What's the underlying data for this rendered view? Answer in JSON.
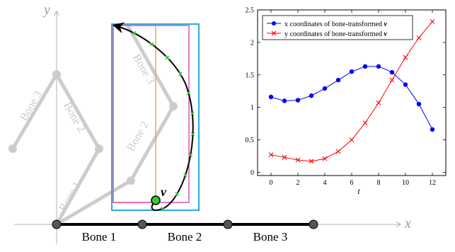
{
  "diagram": {
    "axis_y_label": "y",
    "axis_x_label": "x",
    "rest_bones": [
      "Bone 1",
      "Bone 2",
      "Bone 3"
    ],
    "posed_bones_left": [
      "Bone 1",
      "Bone 2",
      "Bone 3"
    ],
    "posed_bones_right": [
      "Bone 2",
      "Bone 3"
    ],
    "point_label": "v",
    "colors": {
      "ghost": "#cccccc",
      "axis": "#b3b3b3",
      "path": "#000000",
      "path_markers": "#33cc33",
      "point": "#33cc33",
      "box_cyan": "#29abe2",
      "box_orange": "#f2a24c",
      "box_magenta": "#e64fb4",
      "rest_bone": "#000000",
      "joint": "#555555"
    }
  },
  "chart_data": {
    "type": "line",
    "x": [
      0,
      1,
      2,
      3,
      4,
      5,
      6,
      7,
      8,
      9,
      10,
      11,
      12
    ],
    "xlabel": "t",
    "ylabel": "",
    "xlim": [
      -1,
      13
    ],
    "ylim": [
      -0.05,
      2.5
    ],
    "xticks": [
      0,
      2,
      4,
      6,
      8,
      10,
      12
    ],
    "yticks": [
      0,
      0.5,
      1,
      1.5,
      2,
      2.5
    ],
    "ytick_labels": [
      "0",
      "0.5",
      "1",
      "1.5",
      "2",
      "2.5"
    ],
    "legend_position": "top-left",
    "series": [
      {
        "name": "x coordinates of bone-transformed v",
        "legend_text": "x coordinates of bone-transformed",
        "legend_var": "v",
        "color": "#0000ff",
        "marker": "circle",
        "values": [
          1.16,
          1.1,
          1.11,
          1.18,
          1.29,
          1.42,
          1.55,
          1.63,
          1.63,
          1.54,
          1.35,
          1.05,
          0.66
        ]
      },
      {
        "name": "y coordinates of bone-transformed v",
        "legend_text": "y coordinates of bone-transformed",
        "legend_var": "v",
        "color": "#ff0000",
        "marker": "cross",
        "values": [
          0.27,
          0.23,
          0.19,
          0.17,
          0.21,
          0.32,
          0.5,
          0.76,
          1.07,
          1.42,
          1.77,
          2.07,
          2.32
        ]
      }
    ]
  }
}
